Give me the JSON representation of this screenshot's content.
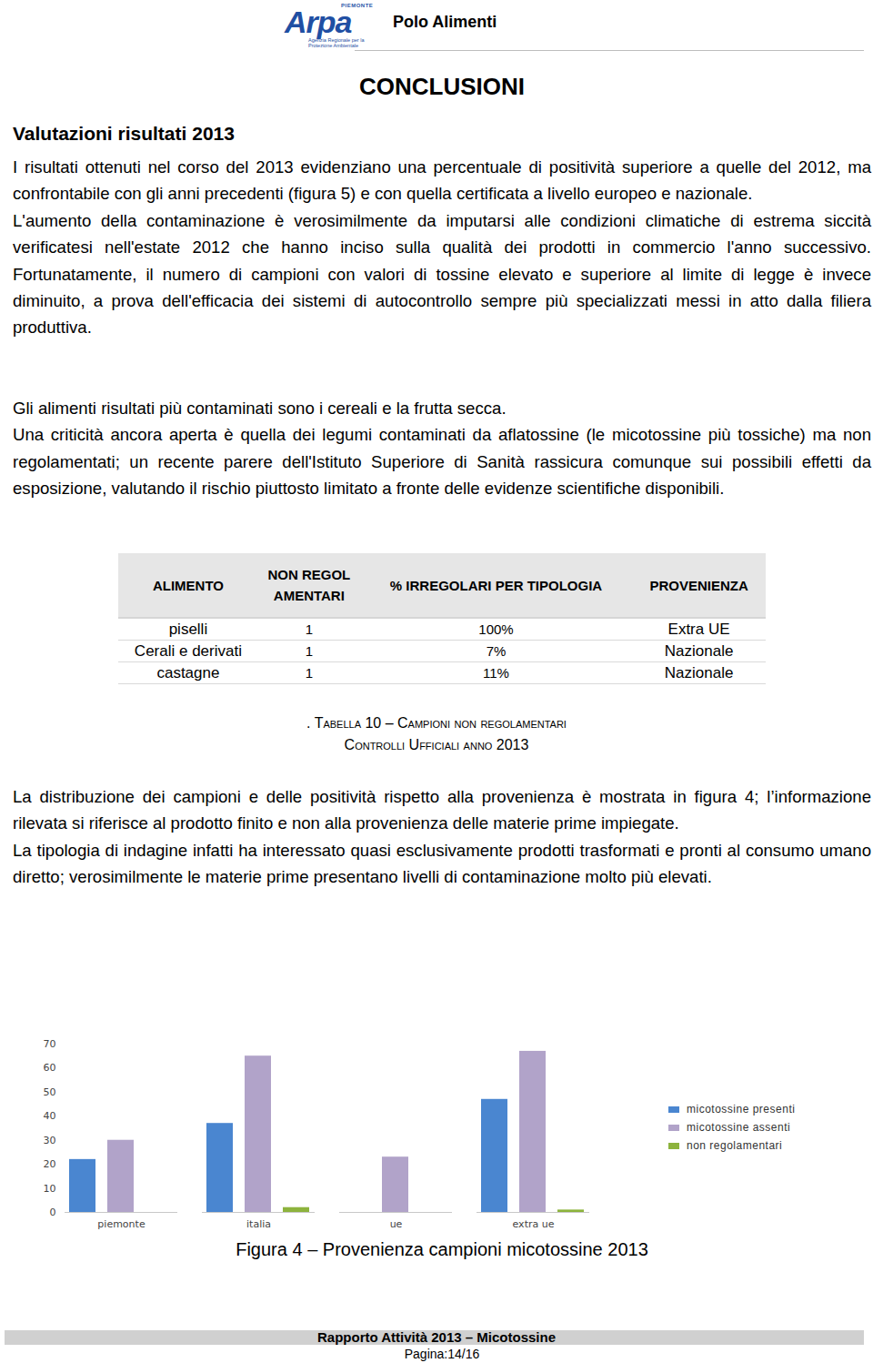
{
  "header": {
    "logo": "Arpa",
    "logo_region": "PIEMONTE",
    "logo_subtitle": "Agenzia Regionale per la Protezione Ambientale",
    "section": "Polo Alimenti"
  },
  "title": "CONCLUSIONI",
  "subtitle": "Valutazioni risultati 2013",
  "paragraphs_1": [
    "I risultati ottenuti nel corso del 2013 evidenziano una percentuale di positività superiore a quelle del 2012, ma confrontabile con gli anni precedenti (figura 5) e con quella certificata a livello europeo e nazionale.",
    "L'aumento della contaminazione è verosimilmente da imputarsi alle condizioni climatiche di estrema siccità verificatesi nell'estate 2012 che hanno inciso sulla qualità dei prodotti in commercio l'anno successivo. Fortunatamente, il numero di campioni con valori di tossine elevato e superiore al limite di legge è invece diminuito, a prova dell'efficacia dei sistemi di autocontrollo sempre più specializzati messi in atto dalla filiera produttiva."
  ],
  "paragraphs_2": [
    "Gli alimenti risultati più contaminati sono i cereali e la frutta secca.",
    "Una criticità ancora aperta è quella dei legumi contaminati da aflatossine (le micotossine più tossiche) ma non regolamentati; un recente parere dell'Istituto Superiore di Sanità rassicura comunque sui possibili effetti da esposizione, valutando il rischio piuttosto limitato a fronte delle evidenze scientifiche disponibili."
  ],
  "table": {
    "headers": [
      "ALIMENTO",
      "NON REGOLAMENTARI",
      "% IRREGOLARI PER TIPOLOGIA",
      "PROVENIENZA"
    ],
    "rows": [
      [
        "piselli",
        "1",
        "100%",
        "Extra UE"
      ],
      [
        "Cerali e derivati",
        "1",
        "7%",
        "Nazionale"
      ],
      [
        "castagne",
        "1",
        "11%",
        "Nazionale"
      ]
    ]
  },
  "table_caption": [
    ". Tabella 10 – Campioni non regolamentari",
    "Controlli Ufficiali anno 2013"
  ],
  "paragraphs_3": [
    "La distribuzione dei campioni e delle positività rispetto alla provenienza è mostrata in figura 4; l’informazione rilevata si riferisce al prodotto finito e non alla provenienza delle materie prime impiegate.",
    "La tipologia di indagine infatti ha interessato quasi esclusivamente prodotti trasformati e pronti al consumo umano diretto; verosimilmente le materie prime presentano livelli di contaminazione molto più elevati."
  ],
  "chart_data": {
    "type": "bar",
    "title": "Figura 4 – Provenienza campioni micotossine 2013",
    "categories": [
      "piemonte",
      "italia",
      "ue",
      "extra ue"
    ],
    "series": [
      {
        "name": "micotossine presenti",
        "color": "#4a86d0",
        "values": [
          22,
          37,
          0,
          47
        ]
      },
      {
        "name": "micotossine assenti",
        "color": "#b1a3c9",
        "values": [
          30,
          65,
          23,
          67
        ]
      },
      {
        "name": "non regolamentari",
        "color": "#8db33d",
        "values": [
          0,
          2,
          0,
          1
        ]
      }
    ],
    "ylim": [
      0,
      70
    ],
    "yticks": [
      0,
      10,
      20,
      30,
      40,
      50,
      60,
      70
    ],
    "grid": false,
    "legend": "right"
  },
  "footer": {
    "title": "Rapporto Attività 2013 – Micotossine",
    "page": "Pagina:14/16"
  }
}
